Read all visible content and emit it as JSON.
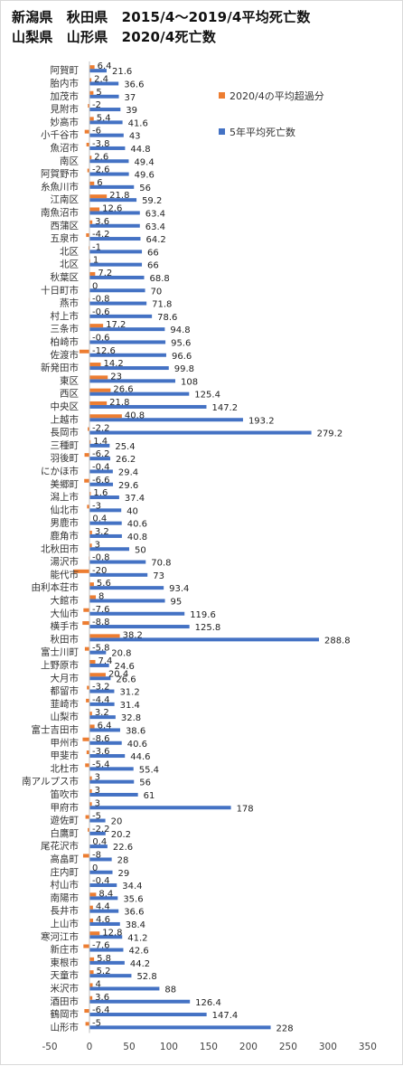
{
  "title_line1": "新潟県　秋田県　2015/4～2019/4平均死亡数",
  "title_line2": "山梨県　山形県　2020/4死亡数",
  "chart_data": {
    "type": "bar",
    "orientation": "horizontal",
    "xlim": [
      -50,
      350
    ],
    "x_ticks": [
      "-50",
      "0",
      "50",
      "100",
      "150",
      "200",
      "250",
      "300",
      "350"
    ],
    "grid": false,
    "legend_position": "right",
    "series": [
      {
        "name": "2020/4の平均超過分",
        "color": "#ed7d31"
      },
      {
        "name": "5年平均死亡数",
        "color": "#4472c4"
      }
    ],
    "rows": [
      {
        "c": "阿賀町",
        "ex": 6.4,
        "ex_label": "6.4",
        "avg": 21.6,
        "avg_label": "21.6"
      },
      {
        "c": "胎内市",
        "ex": 2.4,
        "ex_label": "2.4",
        "avg": 36.6,
        "avg_label": "36.6"
      },
      {
        "c": "加茂市",
        "ex": 5,
        "ex_label": "5",
        "avg": 37,
        "avg_label": "37"
      },
      {
        "c": "見附市",
        "ex": -2,
        "ex_label": "-2",
        "avg": 39,
        "avg_label": "39"
      },
      {
        "c": "妙高市",
        "ex": 5.4,
        "ex_label": "5.4",
        "avg": 41.6,
        "avg_label": "41.6"
      },
      {
        "c": "小千谷市",
        "ex": -6,
        "ex_label": "-6",
        "avg": 43,
        "avg_label": "43"
      },
      {
        "c": "魚沼市",
        "ex": -3.8,
        "ex_label": "-3.8",
        "avg": 44.8,
        "avg_label": "44.8"
      },
      {
        "c": "南区",
        "ex": 2.6,
        "ex_label": "2.6",
        "avg": 49.4,
        "avg_label": "49.4"
      },
      {
        "c": "阿賀野市",
        "ex": -2.6,
        "ex_label": "-2.6",
        "avg": 49.6,
        "avg_label": "49.6"
      },
      {
        "c": "糸魚川市",
        "ex": 6,
        "ex_label": "6",
        "avg": 56,
        "avg_label": "56"
      },
      {
        "c": "江南区",
        "ex": 21.8,
        "ex_label": "21.8",
        "avg": 59.2,
        "avg_label": "59.2"
      },
      {
        "c": "南魚沼市",
        "ex": 12.6,
        "ex_label": "12.6",
        "avg": 63.4,
        "avg_label": "63.4"
      },
      {
        "c": "西蒲区",
        "ex": 3.6,
        "ex_label": "3.6",
        "avg": 63.4,
        "avg_label": "63.4"
      },
      {
        "c": "五泉市",
        "ex": -4.2,
        "ex_label": "-4.2",
        "avg": 64.2,
        "avg_label": "64.2"
      },
      {
        "c": "北区",
        "ex": -1,
        "ex_label": "-1",
        "avg": 66,
        "avg_label": "66"
      },
      {
        "c": "北区",
        "ex": 1,
        "ex_label": "1",
        "avg": 66,
        "avg_label": "66"
      },
      {
        "c": "秋葉区",
        "ex": 7.2,
        "ex_label": "7.2",
        "avg": 68.8,
        "avg_label": "68.8"
      },
      {
        "c": "十日町市",
        "ex": 0,
        "ex_label": "0",
        "avg": 70,
        "avg_label": "70"
      },
      {
        "c": "燕市",
        "ex": -0.8,
        "ex_label": "-0.8",
        "avg": 71.8,
        "avg_label": "71.8"
      },
      {
        "c": "村上市",
        "ex": -0.6,
        "ex_label": "-0.6",
        "avg": 78.6,
        "avg_label": "78.6"
      },
      {
        "c": "三条市",
        "ex": 17.2,
        "ex_label": "17.2",
        "avg": 94.8,
        "avg_label": "94.8"
      },
      {
        "c": "柏崎市",
        "ex": -0.6,
        "ex_label": "-0.6",
        "avg": 95.6,
        "avg_label": "95.6"
      },
      {
        "c": "佐渡市",
        "ex": -12.6,
        "ex_label": "-12.6",
        "avg": 96.6,
        "avg_label": "96.6"
      },
      {
        "c": "新発田市",
        "ex": 14.2,
        "ex_label": "14.2",
        "avg": 99.8,
        "avg_label": "99.8"
      },
      {
        "c": "東区",
        "ex": 23,
        "ex_label": "23",
        "avg": 108,
        "avg_label": "108"
      },
      {
        "c": "西区",
        "ex": 26.6,
        "ex_label": "26.6",
        "avg": 125.4,
        "avg_label": "125.4"
      },
      {
        "c": "中央区",
        "ex": 21.8,
        "ex_label": "21.8",
        "avg": 147.2,
        "avg_label": "147.2"
      },
      {
        "c": "上越市",
        "ex": 40.8,
        "ex_label": "40.8",
        "avg": 193.2,
        "avg_label": "193.2"
      },
      {
        "c": "長岡市",
        "ex": -2.2,
        "ex_label": "-2.2",
        "avg": 279.2,
        "avg_label": "279.2"
      },
      {
        "c": "三種町",
        "ex": 1.4,
        "ex_label": "1.4",
        "avg": 25.4,
        "avg_label": "25.4"
      },
      {
        "c": "羽後町",
        "ex": -6.2,
        "ex_label": "-6.2",
        "avg": 26.2,
        "avg_label": "26.2"
      },
      {
        "c": "にかほ市",
        "ex": -0.4,
        "ex_label": "-0.4",
        "avg": 29.4,
        "avg_label": "29.4"
      },
      {
        "c": "美郷町",
        "ex": -6.6,
        "ex_label": "-6.6",
        "avg": 29.6,
        "avg_label": "29.6"
      },
      {
        "c": "潟上市",
        "ex": 1.6,
        "ex_label": "1.6",
        "avg": 37.4,
        "avg_label": "37.4"
      },
      {
        "c": "仙北市",
        "ex": -3,
        "ex_label": "-3",
        "avg": 40,
        "avg_label": "40"
      },
      {
        "c": "男鹿市",
        "ex": 0.4,
        "ex_label": "0.4",
        "avg": 40.6,
        "avg_label": "40.6"
      },
      {
        "c": "鹿角市",
        "ex": 3.2,
        "ex_label": "3.2",
        "avg": 40.8,
        "avg_label": "40.8"
      },
      {
        "c": "北秋田市",
        "ex": 3,
        "ex_label": "3",
        "avg": 50,
        "avg_label": "50"
      },
      {
        "c": "湯沢市",
        "ex": -0.8,
        "ex_label": "-0.8",
        "avg": 70.8,
        "avg_label": "70.8"
      },
      {
        "c": "能代市",
        "ex": -20,
        "ex_label": "-20",
        "avg": 73,
        "avg_label": "73"
      },
      {
        "c": "由利本荘市",
        "ex": 5.6,
        "ex_label": "5.6",
        "avg": 93.4,
        "avg_label": "93.4"
      },
      {
        "c": "大館市",
        "ex": 8,
        "ex_label": "8",
        "avg": 95,
        "avg_label": "95"
      },
      {
        "c": "大仙市",
        "ex": -7.6,
        "ex_label": "-7.6",
        "avg": 119.6,
        "avg_label": "119.6"
      },
      {
        "c": "横手市",
        "ex": -8.8,
        "ex_label": "-8.8",
        "avg": 125.8,
        "avg_label": "125.8"
      },
      {
        "c": "秋田市",
        "ex": 38.2,
        "ex_label": "38.2",
        "avg": 288.8,
        "avg_label": "288.8"
      },
      {
        "c": "富士川町",
        "ex": -5.8,
        "ex_label": "-5.8",
        "avg": 20.8,
        "avg_label": "20.8"
      },
      {
        "c": "上野原市",
        "ex": 7.4,
        "ex_label": "7.4",
        "avg": 24.6,
        "avg_label": "24.6"
      },
      {
        "c": "大月市",
        "ex": 20.4,
        "ex_label": "20.4",
        "avg": 26.6,
        "avg_label": "26.6"
      },
      {
        "c": "都留市",
        "ex": -3.2,
        "ex_label": "-3.2",
        "avg": 31.2,
        "avg_label": "31.2"
      },
      {
        "c": "韮崎市",
        "ex": -4.4,
        "ex_label": "-4.4",
        "avg": 31.4,
        "avg_label": "31.4"
      },
      {
        "c": "山梨市",
        "ex": 3.2,
        "ex_label": "3.2",
        "avg": 32.8,
        "avg_label": "32.8"
      },
      {
        "c": "富士吉田市",
        "ex": 6.4,
        "ex_label": "6.4",
        "avg": 38.6,
        "avg_label": "38.6"
      },
      {
        "c": "甲州市",
        "ex": -8.6,
        "ex_label": "-8.6",
        "avg": 40.6,
        "avg_label": "40.6"
      },
      {
        "c": "甲斐市",
        "ex": -3.6,
        "ex_label": "-3.6",
        "avg": 44.6,
        "avg_label": "44.6"
      },
      {
        "c": "北杜市",
        "ex": -5.4,
        "ex_label": "-5.4",
        "avg": 55.4,
        "avg_label": "55.4"
      },
      {
        "c": "南アルプス市",
        "ex": 3,
        "ex_label": "3",
        "avg": 56,
        "avg_label": "56"
      },
      {
        "c": "笛吹市",
        "ex": 3,
        "ex_label": "3",
        "avg": 61,
        "avg_label": "61"
      },
      {
        "c": "甲府市",
        "ex": 3,
        "ex_label": "3",
        "avg": 178,
        "avg_label": "178"
      },
      {
        "c": "遊佐町",
        "ex": -5,
        "ex_label": "-5",
        "avg": 20,
        "avg_label": "20"
      },
      {
        "c": "白鷹町",
        "ex": -2.2,
        "ex_label": "-2.2",
        "avg": 20.2,
        "avg_label": "20.2"
      },
      {
        "c": "尾花沢市",
        "ex": 0.4,
        "ex_label": "0.4",
        "avg": 22.6,
        "avg_label": "22.6"
      },
      {
        "c": "高畠町",
        "ex": -8,
        "ex_label": "-8",
        "avg": 28,
        "avg_label": "28"
      },
      {
        "c": "庄内町",
        "ex": 0,
        "ex_label": "0",
        "avg": 29,
        "avg_label": "29"
      },
      {
        "c": "村山市",
        "ex": -0.4,
        "ex_label": "-0.4",
        "avg": 34.4,
        "avg_label": "34.4"
      },
      {
        "c": "南陽市",
        "ex": 8.4,
        "ex_label": "8.4",
        "avg": 35.6,
        "avg_label": "35.6"
      },
      {
        "c": "長井市",
        "ex": 4.4,
        "ex_label": "4.4",
        "avg": 36.6,
        "avg_label": "36.6"
      },
      {
        "c": "上山市",
        "ex": 4.6,
        "ex_label": "4.6",
        "avg": 38.4,
        "avg_label": "38.4"
      },
      {
        "c": "寒河江市",
        "ex": 12.8,
        "ex_label": "12.8",
        "avg": 41.2,
        "avg_label": "41.2"
      },
      {
        "c": "新庄市",
        "ex": -7.6,
        "ex_label": "-7.6",
        "avg": 42.6,
        "avg_label": "42.6"
      },
      {
        "c": "東根市",
        "ex": 5.8,
        "ex_label": "5.8",
        "avg": 44.2,
        "avg_label": "44.2"
      },
      {
        "c": "天童市",
        "ex": 5.2,
        "ex_label": "5.2",
        "avg": 52.8,
        "avg_label": "52.8"
      },
      {
        "c": "米沢市",
        "ex": 4,
        "ex_label": "4",
        "avg": 88,
        "avg_label": "88"
      },
      {
        "c": "酒田市",
        "ex": 3.6,
        "ex_label": "3.6",
        "avg": 126.4,
        "avg_label": "126.4"
      },
      {
        "c": "鶴岡市",
        "ex": -6.4,
        "ex_label": "-6.4",
        "avg": 147.4,
        "avg_label": "147.4"
      },
      {
        "c": "山形市",
        "ex": -5,
        "ex_label": "-5",
        "avg": 228,
        "avg_label": "228"
      }
    ]
  }
}
